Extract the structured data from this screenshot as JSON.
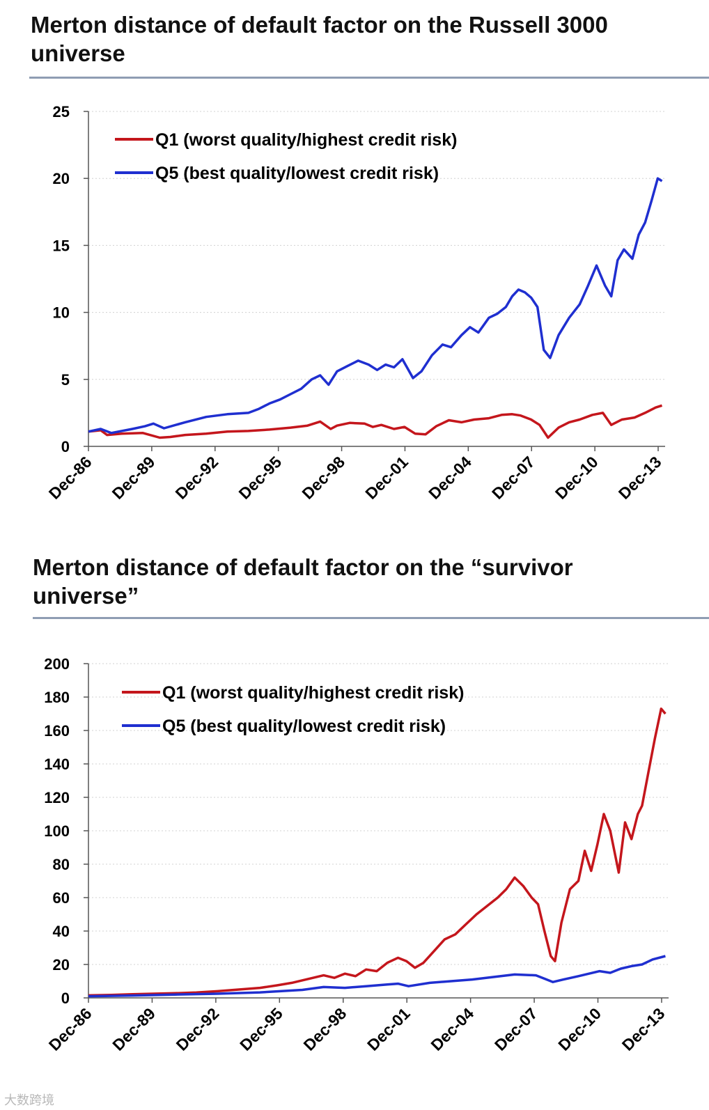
{
  "page": {
    "watermark": "大数跨境"
  },
  "colors": {
    "q1": "#c4161c",
    "q5": "#1f2fd0",
    "rule": "#8f9db3",
    "grid": "#d0d0d0"
  },
  "chart_data": [
    {
      "type": "line",
      "title": "Merton distance of default factor on the Russell 3000 universe",
      "ylim": [
        0,
        25
      ],
      "yticks": [
        0,
        5,
        10,
        15,
        20,
        25
      ],
      "categories": [
        "Dec-86",
        "Dec-89",
        "Dec-92",
        "Dec-95",
        "Dec-98",
        "Dec-01",
        "Dec-04",
        "Dec-07",
        "Dec-10",
        "Dec-13"
      ],
      "xlim": [
        1986.92,
        2014.25
      ],
      "grid": true,
      "legend": "top-left",
      "series": [
        {
          "name": "Q1 (worst quality/highest credit risk)",
          "color": "#c4161c",
          "x": [
            1986.92,
            1987.5,
            1987.8,
            1988.5,
            1989.5,
            1990.3,
            1990.8,
            1991.5,
            1992.5,
            1993.5,
            1994.5,
            1995.5,
            1996.5,
            1997.3,
            1997.9,
            1998.4,
            1998.7,
            1999.3,
            2000.0,
            2000.4,
            2000.8,
            2001.4,
            2001.9,
            2002.4,
            2002.9,
            2003.4,
            2004.0,
            2004.6,
            2005.2,
            2005.9,
            2006.5,
            2007.0,
            2007.4,
            2007.9,
            2008.3,
            2008.7,
            2009.2,
            2009.7,
            2010.2,
            2010.8,
            2011.3,
            2011.7,
            2012.2,
            2012.8,
            2013.3,
            2013.8,
            2014.1
          ],
          "values": [
            1.1,
            1.2,
            0.85,
            0.95,
            1.0,
            0.65,
            0.7,
            0.85,
            0.95,
            1.1,
            1.15,
            1.25,
            1.4,
            1.55,
            1.85,
            1.3,
            1.55,
            1.75,
            1.7,
            1.45,
            1.6,
            1.3,
            1.45,
            0.95,
            0.9,
            1.5,
            1.95,
            1.8,
            2.0,
            2.1,
            2.35,
            2.4,
            2.3,
            2.0,
            1.6,
            0.65,
            1.4,
            1.8,
            2.0,
            2.35,
            2.5,
            1.6,
            2.0,
            2.15,
            2.5,
            2.9,
            3.05
          ]
        },
        {
          "name": "Q5 (best quality/lowest credit risk)",
          "color": "#1f2fd0",
          "x": [
            1986.92,
            1987.5,
            1988.0,
            1989.0,
            1989.6,
            1990.0,
            1990.5,
            1991.5,
            1992.5,
            1993.5,
            1994.5,
            1995.0,
            1995.5,
            1996.0,
            1996.5,
            1997.0,
            1997.5,
            1997.9,
            1998.3,
            1998.7,
            1999.2,
            1999.7,
            2000.2,
            2000.6,
            2001.0,
            2001.4,
            2001.8,
            2002.3,
            2002.7,
            2003.2,
            2003.7,
            2004.1,
            2004.6,
            2005.0,
            2005.4,
            2005.9,
            2006.3,
            2006.7,
            2007.0,
            2007.3,
            2007.6,
            2007.9,
            2008.2,
            2008.5,
            2008.8,
            2009.2,
            2009.7,
            2010.2,
            2010.6,
            2011.0,
            2011.4,
            2011.7,
            2012.0,
            2012.3,
            2012.7,
            2013.0,
            2013.3,
            2013.6,
            2013.9,
            2014.1
          ],
          "values": [
            1.1,
            1.3,
            1.0,
            1.3,
            1.5,
            1.7,
            1.35,
            1.8,
            2.2,
            2.4,
            2.5,
            2.8,
            3.2,
            3.5,
            3.9,
            4.3,
            5.0,
            5.3,
            4.6,
            5.6,
            6.0,
            6.4,
            6.1,
            5.7,
            6.1,
            5.9,
            6.5,
            5.1,
            5.6,
            6.8,
            7.6,
            7.4,
            8.3,
            8.9,
            8.5,
            9.6,
            9.9,
            10.4,
            11.2,
            11.7,
            11.5,
            11.1,
            10.4,
            7.2,
            6.6,
            8.3,
            9.6,
            10.6,
            12.0,
            13.5,
            12.0,
            11.2,
            13.9,
            14.7,
            14.0,
            15.8,
            16.7,
            18.3,
            20.0,
            19.8
          ]
        }
      ]
    },
    {
      "type": "line",
      "title": "Merton distance of default factor on the “survivor universe”",
      "ylim": [
        0,
        200
      ],
      "yticks": [
        0,
        20,
        40,
        60,
        80,
        100,
        120,
        140,
        160,
        180,
        200
      ],
      "categories": [
        "Dec-86",
        "Dec-89",
        "Dec-92",
        "Dec-95",
        "Dec-98",
        "Dec-01",
        "Dec-04",
        "Dec-07",
        "Dec-10",
        "Dec-13"
      ],
      "xlim": [
        1986.92,
        2014.25
      ],
      "grid": true,
      "legend": "top-left",
      "series": [
        {
          "name": "Q1 (worst quality/highest credit risk)",
          "color": "#c4161c",
          "x": [
            1986.92,
            1988.0,
            1989.0,
            1990.0,
            1991.0,
            1992.0,
            1993.0,
            1994.0,
            1995.0,
            1995.8,
            1996.5,
            1997.0,
            1997.5,
            1998.0,
            1998.5,
            1999.0,
            1999.5,
            2000.0,
            2000.5,
            2001.0,
            2001.5,
            2001.9,
            2002.3,
            2002.7,
            2003.2,
            2003.7,
            2004.2,
            2004.7,
            2005.2,
            2005.7,
            2006.2,
            2006.6,
            2007.0,
            2007.4,
            2007.8,
            2008.1,
            2008.4,
            2008.7,
            2008.9,
            2009.2,
            2009.6,
            2010.0,
            2010.3,
            2010.6,
            2010.9,
            2011.2,
            2011.5,
            2011.9,
            2012.2,
            2012.5,
            2012.8,
            2013.0,
            2013.3,
            2013.6,
            2013.9,
            2014.1
          ],
          "values": [
            1.5,
            1.8,
            2.2,
            2.5,
            2.8,
            3.2,
            4.0,
            5.0,
            6.0,
            7.5,
            9.0,
            10.5,
            12.0,
            13.5,
            12.0,
            14.5,
            13.0,
            17.0,
            16.0,
            21.0,
            24.0,
            22.0,
            18.0,
            21.0,
            28.0,
            35.0,
            38.0,
            44.0,
            50.0,
            55.0,
            60.0,
            65.0,
            72.0,
            67.0,
            60.0,
            56.0,
            40.0,
            25.0,
            22.0,
            45.0,
            65.0,
            70.0,
            88.0,
            76.0,
            92.0,
            110.0,
            100.0,
            75.0,
            105.0,
            95.0,
            110.0,
            115.0,
            135.0,
            155.0,
            173.0,
            170.0
          ]
        },
        {
          "name": "Q5 (best quality/lowest credit risk)",
          "color": "#1f2fd0",
          "x": [
            1986.92,
            1989.0,
            1991.0,
            1993.0,
            1995.0,
            1997.0,
            1998.0,
            1999.0,
            2000.0,
            2001.0,
            2001.5,
            2002.0,
            2003.0,
            2004.0,
            2005.0,
            2006.0,
            2007.0,
            2008.0,
            2008.4,
            2008.8,
            2009.3,
            2010.0,
            2010.5,
            2011.0,
            2011.5,
            2012.0,
            2012.5,
            2013.0,
            2013.5,
            2014.1
          ],
          "values": [
            1.0,
            1.4,
            2.0,
            2.5,
            3.3,
            4.8,
            6.5,
            6.0,
            7.0,
            8.0,
            8.5,
            7.0,
            9.0,
            10.0,
            11.0,
            12.5,
            14.0,
            13.5,
            11.5,
            9.5,
            11.0,
            13.0,
            14.5,
            16.0,
            15.0,
            17.5,
            19.0,
            20.0,
            23.0,
            25.0
          ]
        }
      ]
    }
  ]
}
